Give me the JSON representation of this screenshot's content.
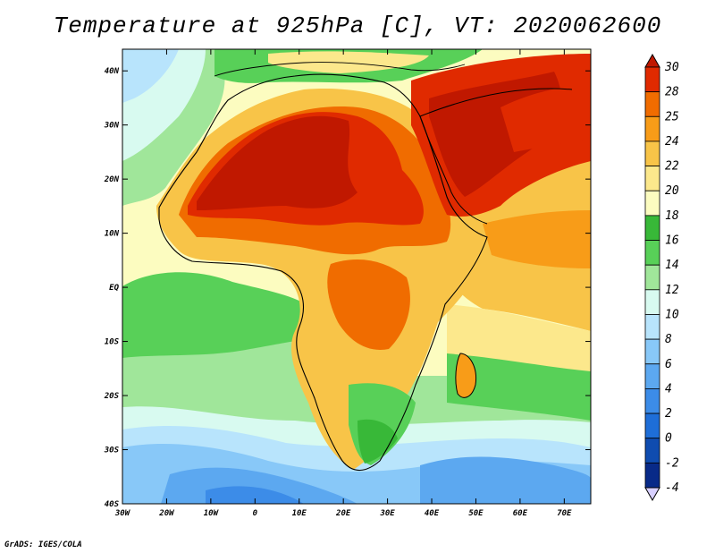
{
  "title": "Temperature at 925hPa [C], VT: 2020062600",
  "credit": "GrADS: IGES/COLA",
  "chart_data": {
    "type": "heatmap",
    "variable": "Temperature at 925hPa",
    "units": "C",
    "valid_time": "2020062600",
    "lon_range": [
      -30,
      76
    ],
    "lat_range": [
      -40,
      44
    ],
    "x_tick_labels": [
      "30W",
      "20W",
      "10W",
      "0",
      "10E",
      "20E",
      "30E",
      "40E",
      "50E",
      "60E",
      "70E"
    ],
    "y_tick_labels": [
      "40N",
      "30N",
      "20N",
      "10N",
      "EQ",
      "10S",
      "20S",
      "30S",
      "40S"
    ],
    "x_tick_values": [
      -30,
      -20,
      -10,
      0,
      10,
      20,
      30,
      40,
      50,
      60,
      70
    ],
    "y_tick_values": [
      40,
      30,
      20,
      10,
      0,
      -10,
      -20,
      -30,
      -40
    ],
    "colorbar": {
      "levels": [
        "30",
        "28",
        "25",
        "24",
        "22",
        "20",
        "18",
        "16",
        "14",
        "12",
        "10",
        "8",
        "6",
        "4",
        "2",
        "0",
        "-2",
        "-4"
      ],
      "colors": [
        "#c01800",
        "#e02a00",
        "#f06c00",
        "#f89c18",
        "#f8c448",
        "#fce88c",
        "#fcfcc0",
        "#38b838",
        "#58d058",
        "#a0e69a",
        "#d8faf0",
        "#b8e4fc",
        "#88c8f8",
        "#5ca8f0",
        "#3c8ce8",
        "#1e6ed8",
        "#0f4cb0",
        "#082a88",
        "#d8d0ff"
      ]
    }
  }
}
